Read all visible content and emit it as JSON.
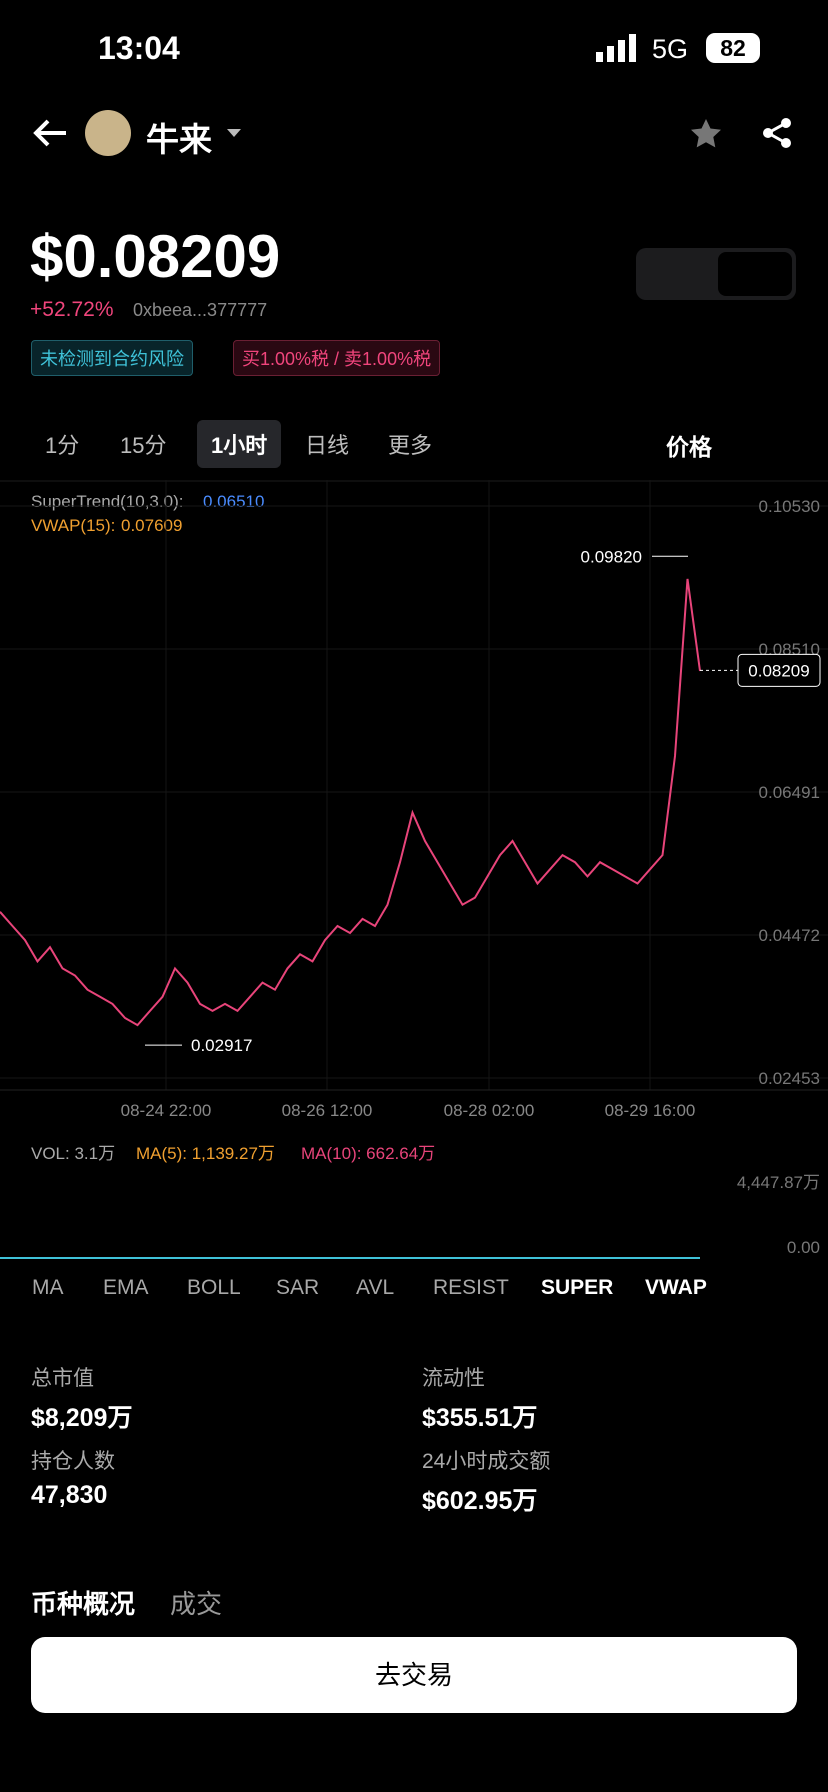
{
  "status": {
    "time": "13:04",
    "network": "5G",
    "battery": "82"
  },
  "header": {
    "name": "牛来"
  },
  "price": {
    "value": "$0.08209",
    "change": "+52.72%",
    "address": "0xbeea...377777"
  },
  "badges": [
    "未检测到合约风险",
    "买1.00%税 / 卖1.00%税"
  ],
  "intervals": [
    "1分",
    "15分",
    "1小时",
    "日线",
    "更多"
  ],
  "price_toggle": "价格",
  "chart_data": {
    "type": "line",
    "supertrend_label": "SuperTrend(10,3.0):",
    "supertrend_value": "0.06510",
    "vwap_label": "VWAP(15):",
    "vwap_value": "0.07609",
    "values": [
      0.048,
      0.046,
      0.044,
      0.041,
      0.043,
      0.04,
      0.039,
      0.037,
      0.036,
      0.035,
      0.033,
      0.032,
      0.034,
      0.036,
      0.04,
      0.038,
      0.035,
      0.034,
      0.035,
      0.034,
      0.036,
      0.038,
      0.037,
      0.04,
      0.042,
      0.041,
      0.044,
      0.046,
      0.045,
      0.047,
      0.046,
      0.049,
      0.055,
      0.062,
      0.058,
      0.055,
      0.052,
      0.049,
      0.05,
      0.053,
      0.056,
      0.058,
      0.055,
      0.052,
      0.054,
      0.056,
      0.055,
      0.053,
      0.055,
      0.054,
      0.053,
      0.052,
      0.054,
      0.056,
      0.07,
      0.095,
      0.082
    ],
    "color": "#e8447a",
    "ylim": [
      0.02453,
      0.1053
    ],
    "yticks": [
      {
        "value": 0.1053,
        "label": "0.10530"
      },
      {
        "value": 0.0851,
        "label": "0.08510"
      },
      0.06491,
      0.04472,
      0.02453
    ],
    "x_labels": [
      "08-24 22:00",
      "08-26 12:00",
      "08-28 02:00",
      "08-29 16:00"
    ],
    "high": {
      "value": 0.0982,
      "label": "0.09820"
    },
    "low": 0.02917,
    "last": 0.08209
  },
  "volume": {
    "label": "VOL: 3.1万",
    "ma5": "MA(5): 1,139.27万",
    "ma10": "MA(10): 662.64万",
    "max": "4,447.87万",
    "min": "0.00"
  },
  "indicators": [
    "MA",
    "EMA",
    "BOLL",
    "SAR",
    "AVL",
    "RESIST",
    "SUPER",
    "VWAP"
  ],
  "stats": [
    {
      "label": "总市值",
      "value": "$8,209万"
    },
    {
      "label": "流动性",
      "value": "$355.51万"
    },
    {
      "label": "持仓人数",
      "value": "47,830"
    },
    {
      "label": "24小时成交额",
      "value": "$602.95万"
    }
  ],
  "tabs": [
    "币种概况",
    "成交"
  ],
  "button": "去交易"
}
